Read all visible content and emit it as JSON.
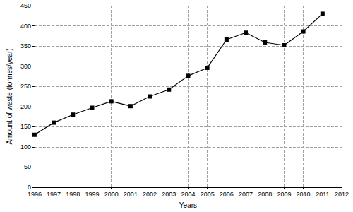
{
  "chart_data": {
    "type": "line",
    "x_label": "Years",
    "y_label": "Amount of waste (tonnes/year)",
    "x": [
      1996,
      1997,
      1998,
      1999,
      2000,
      2001,
      2002,
      2003,
      2004,
      2005,
      2006,
      2007,
      2008,
      2009,
      2010,
      2011
    ],
    "values": [
      130,
      160,
      180,
      197,
      213,
      201,
      225,
      242,
      276,
      296,
      366,
      383,
      359,
      352,
      386,
      430
    ],
    "color": "#000000",
    "marker": "square",
    "line_style": "solid",
    "xlim": [
      1996,
      2012
    ],
    "xticks": [
      1996,
      1997,
      1998,
      1999,
      2000,
      2001,
      2002,
      2003,
      2004,
      2005,
      2006,
      2007,
      2008,
      2009,
      2010,
      2011,
      2012
    ],
    "ylim": [
      0,
      450
    ],
    "yticks": [
      0,
      50,
      100,
      150,
      200,
      250,
      300,
      350,
      400,
      450
    ],
    "grid": true
  }
}
